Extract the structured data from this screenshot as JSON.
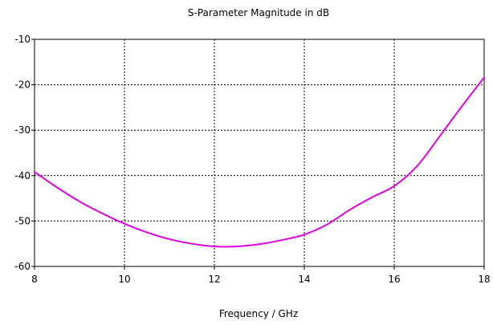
{
  "chart_data": {
    "type": "line",
    "title": "S-Parameter Magnitude in dB",
    "xlabel": "Frequency / GHz",
    "ylabel": "",
    "xlim": [
      8,
      18
    ],
    "ylim": [
      -60,
      -10
    ],
    "x_ticks": [
      8,
      10,
      12,
      14,
      16,
      18
    ],
    "y_ticks": [
      -10,
      -20,
      -30,
      -40,
      -50,
      -60
    ],
    "grid": true,
    "grid_style": "dotted",
    "series": [
      {
        "color": "#e000e0",
        "x": [
          8,
          8.5,
          9,
          9.5,
          10,
          10.5,
          11,
          11.5,
          12,
          12.5,
          13,
          13.5,
          14,
          14.5,
          15,
          15.5,
          16,
          16.5,
          17,
          17.5,
          18
        ],
        "y": [
          -39.2,
          -42.6,
          -45.7,
          -48.3,
          -50.6,
          -52.5,
          -54.0,
          -55.0,
          -55.6,
          -55.6,
          -55.1,
          -54.2,
          -53.0,
          -50.8,
          -47.6,
          -44.8,
          -42.3,
          -38.0,
          -31.5,
          -24.8,
          -18.4
        ]
      }
    ]
  }
}
